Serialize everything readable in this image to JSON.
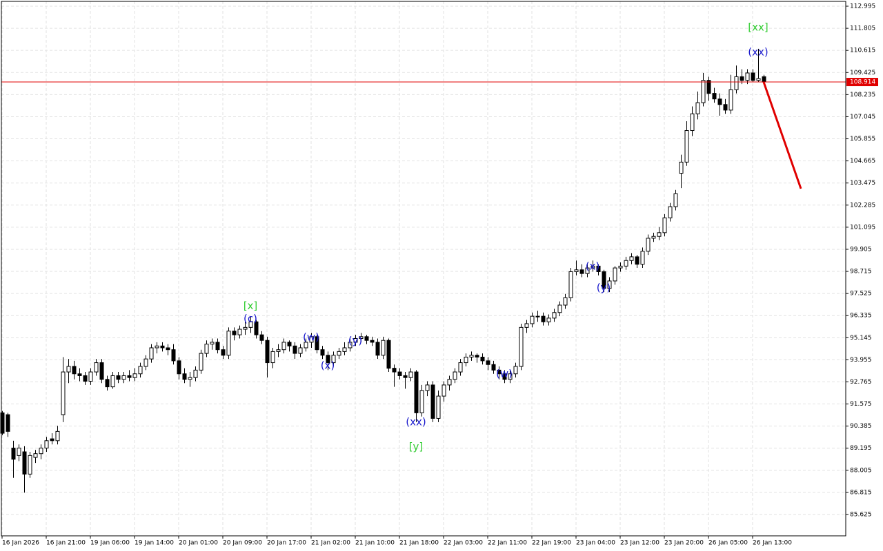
{
  "chart_data": {
    "type": "candlestick",
    "up_color": "#ffffff",
    "down_color": "#000000",
    "wick_color": "#000000",
    "grid": true,
    "ylim": [
      84.475,
      113.255
    ],
    "yticks": [
      112.995,
      111.805,
      110.615,
      109.425,
      108.235,
      107.045,
      105.855,
      104.665,
      103.475,
      102.285,
      101.095,
      99.905,
      98.715,
      97.525,
      96.335,
      95.145,
      93.955,
      92.765,
      91.575,
      90.385,
      89.195,
      88.005,
      86.815,
      85.625
    ],
    "categories": [
      "16 Jan 2026",
      null,
      null,
      null,
      null,
      null,
      null,
      null,
      "16 Jan 21:00",
      null,
      null,
      null,
      null,
      null,
      null,
      null,
      "19 Jan 06:00",
      null,
      null,
      null,
      null,
      null,
      null,
      null,
      "19 Jan 14:00",
      null,
      null,
      null,
      null,
      null,
      null,
      null,
      "20 Jan 01:00",
      null,
      null,
      null,
      null,
      null,
      null,
      null,
      "20 Jan 09:00",
      null,
      null,
      null,
      null,
      null,
      null,
      null,
      "20 Jan 17:00",
      null,
      null,
      null,
      null,
      null,
      null,
      null,
      "21 Jan 02:00",
      null,
      null,
      null,
      null,
      null,
      null,
      null,
      "21 Jan 10:00",
      null,
      null,
      null,
      null,
      null,
      null,
      null,
      "21 Jan 18:00",
      null,
      null,
      null,
      null,
      null,
      null,
      null,
      "22 Jan 03:00",
      null,
      null,
      null,
      null,
      null,
      null,
      null,
      "22 Jan 11:00",
      null,
      null,
      null,
      null,
      null,
      null,
      null,
      "22 Jan 19:00",
      null,
      null,
      null,
      null,
      null,
      null,
      null,
      "23 Jan 04:00",
      null,
      null,
      null,
      null,
      null,
      null,
      null,
      "23 Jan 12:00",
      null,
      null,
      null,
      null,
      null,
      null,
      null,
      "23 Jan 20:00",
      null,
      null,
      null,
      null,
      null,
      null,
      null,
      "26 Jan 05:00",
      null,
      null,
      null,
      null,
      null,
      null,
      null,
      "26 Jan 13:00",
      null,
      null
    ],
    "candles": [
      [
        91.1,
        91.2,
        89.9,
        90.0
      ],
      [
        91.0,
        91.1,
        89.8,
        90.1
      ],
      [
        89.2,
        89.6,
        87.6,
        88.6
      ],
      [
        88.8,
        89.4,
        88.5,
        89.2
      ],
      [
        89.0,
        89.3,
        86.8,
        87.8
      ],
      [
        87.8,
        89.0,
        87.6,
        88.8
      ],
      [
        88.7,
        89.1,
        88.4,
        88.9
      ],
      [
        88.9,
        89.4,
        88.6,
        89.2
      ],
      [
        89.2,
        89.8,
        89.0,
        89.6
      ],
      [
        89.7,
        90.0,
        89.4,
        89.6
      ],
      [
        89.6,
        90.4,
        89.4,
        90.1
      ],
      [
        91.0,
        94.1,
        90.6,
        93.3
      ],
      [
        93.3,
        94.0,
        92.7,
        93.6
      ],
      [
        93.6,
        93.9,
        92.9,
        93.2
      ],
      [
        93.2,
        93.5,
        92.8,
        93.1
      ],
      [
        93.1,
        93.3,
        92.6,
        92.8
      ],
      [
        92.8,
        93.5,
        92.6,
        93.3
      ],
      [
        93.3,
        94.0,
        93.1,
        93.8
      ],
      [
        93.8,
        94.0,
        92.7,
        92.9
      ],
      [
        92.9,
        93.1,
        92.3,
        92.5
      ],
      [
        92.5,
        93.3,
        92.4,
        93.1
      ],
      [
        93.1,
        93.3,
        92.7,
        92.9
      ],
      [
        92.9,
        93.3,
        92.7,
        93.1
      ],
      [
        93.1,
        93.4,
        92.8,
        93.0
      ],
      [
        93.0,
        93.5,
        92.8,
        93.2
      ],
      [
        93.2,
        93.8,
        93.0,
        93.6
      ],
      [
        93.6,
        94.2,
        93.4,
        94.0
      ],
      [
        94.0,
        94.8,
        93.8,
        94.6
      ],
      [
        94.6,
        94.9,
        94.3,
        94.7
      ],
      [
        94.7,
        94.9,
        94.4,
        94.6
      ],
      [
        94.6,
        94.8,
        94.2,
        94.5
      ],
      [
        94.5,
        94.8,
        93.7,
        93.9
      ],
      [
        93.9,
        94.1,
        92.9,
        93.2
      ],
      [
        93.2,
        93.5,
        92.7,
        92.9
      ],
      [
        92.9,
        93.3,
        92.5,
        93.0
      ],
      [
        93.0,
        93.6,
        92.8,
        93.4
      ],
      [
        93.4,
        94.5,
        93.2,
        94.3
      ],
      [
        94.3,
        95.0,
        94.1,
        94.8
      ],
      [
        94.8,
        95.1,
        94.5,
        94.9
      ],
      [
        94.9,
        95.1,
        94.3,
        94.5
      ],
      [
        94.5,
        94.7,
        94.0,
        94.2
      ],
      [
        94.2,
        95.7,
        94.0,
        95.5
      ],
      [
        95.5,
        95.7,
        95.0,
        95.3
      ],
      [
        95.3,
        95.8,
        95.1,
        95.6
      ],
      [
        95.6,
        96.0,
        95.3,
        95.7
      ],
      [
        95.7,
        96.3,
        95.4,
        96.0
      ],
      [
        96.0,
        96.1,
        95.1,
        95.3
      ],
      [
        95.3,
        95.5,
        94.8,
        95.0
      ],
      [
        95.0,
        95.2,
        93.0,
        93.8
      ],
      [
        93.8,
        94.6,
        93.5,
        94.4
      ],
      [
        94.4,
        94.8,
        94.1,
        94.5
      ],
      [
        94.5,
        95.1,
        94.3,
        94.9
      ],
      [
        94.9,
        95.0,
        94.4,
        94.7
      ],
      [
        94.7,
        94.9,
        94.0,
        94.3
      ],
      [
        94.3,
        94.8,
        94.1,
        94.6
      ],
      [
        94.6,
        95.1,
        94.4,
        94.9
      ],
      [
        94.9,
        95.4,
        94.6,
        95.2
      ],
      [
        95.2,
        95.3,
        94.3,
        94.5
      ],
      [
        94.5,
        94.7,
        94.0,
        94.2
      ],
      [
        94.2,
        94.4,
        93.4,
        93.8
      ],
      [
        93.8,
        94.4,
        93.6,
        94.2
      ],
      [
        94.2,
        94.6,
        94.0,
        94.4
      ],
      [
        94.4,
        94.9,
        94.2,
        94.6
      ],
      [
        94.6,
        95.1,
        94.4,
        94.9
      ],
      [
        94.9,
        95.3,
        94.7,
        95.1
      ],
      [
        95.1,
        95.4,
        94.9,
        95.2
      ],
      [
        95.2,
        95.3,
        94.8,
        95.0
      ],
      [
        95.0,
        95.2,
        94.7,
        94.9
      ],
      [
        94.9,
        95.1,
        94.0,
        94.2
      ],
      [
        94.2,
        95.2,
        94.0,
        95.0
      ],
      [
        95.0,
        95.1,
        93.3,
        93.5
      ],
      [
        93.5,
        93.7,
        92.5,
        93.3
      ],
      [
        93.3,
        93.5,
        92.9,
        93.1
      ],
      [
        93.1,
        93.3,
        92.4,
        93.0
      ],
      [
        93.0,
        93.5,
        92.8,
        93.3
      ],
      [
        93.3,
        93.4,
        90.6,
        91.1
      ],
      [
        91.1,
        92.6,
        90.9,
        92.3
      ],
      [
        92.3,
        92.8,
        92.0,
        92.6
      ],
      [
        92.6,
        92.8,
        90.6,
        90.8
      ],
      [
        90.8,
        92.3,
        90.6,
        92.0
      ],
      [
        92.0,
        92.8,
        91.7,
        92.6
      ],
      [
        92.6,
        93.1,
        92.3,
        92.9
      ],
      [
        92.9,
        93.5,
        92.7,
        93.3
      ],
      [
        93.3,
        94.0,
        93.1,
        93.8
      ],
      [
        93.8,
        94.3,
        93.6,
        94.1
      ],
      [
        94.1,
        94.4,
        93.9,
        94.2
      ],
      [
        94.2,
        94.3,
        93.8,
        94.1
      ],
      [
        94.1,
        94.3,
        93.7,
        93.9
      ],
      [
        93.9,
        94.1,
        93.4,
        93.7
      ],
      [
        93.7,
        93.9,
        93.2,
        93.4
      ],
      [
        93.4,
        93.6,
        92.9,
        93.2
      ],
      [
        93.2,
        93.4,
        92.7,
        92.9
      ],
      [
        92.9,
        93.4,
        92.7,
        93.2
      ],
      [
        93.2,
        93.8,
        93.0,
        93.6
      ],
      [
        93.6,
        95.9,
        93.4,
        95.7
      ],
      [
        95.7,
        96.1,
        95.4,
        95.9
      ],
      [
        95.9,
        96.5,
        95.7,
        96.3
      ],
      [
        96.3,
        96.6,
        96.0,
        96.3
      ],
      [
        96.3,
        96.5,
        95.8,
        96.0
      ],
      [
        96.0,
        96.4,
        95.8,
        96.2
      ],
      [
        96.2,
        96.7,
        96.0,
        96.5
      ],
      [
        96.5,
        97.1,
        96.3,
        96.9
      ],
      [
        96.9,
        97.5,
        96.7,
        97.3
      ],
      [
        97.3,
        98.9,
        97.1,
        98.7
      ],
      [
        98.7,
        99.3,
        98.5,
        98.8
      ],
      [
        98.8,
        99.1,
        98.4,
        98.6
      ],
      [
        98.6,
        99.1,
        98.4,
        98.9
      ],
      [
        98.9,
        99.3,
        98.7,
        99.0
      ],
      [
        99.0,
        99.1,
        98.5,
        98.7
      ],
      [
        98.7,
        98.8,
        97.6,
        97.8
      ],
      [
        97.8,
        98.4,
        97.6,
        98.2
      ],
      [
        98.2,
        99.0,
        98.0,
        98.9
      ],
      [
        98.9,
        99.2,
        98.7,
        99.0
      ],
      [
        99.0,
        99.5,
        98.8,
        99.3
      ],
      [
        99.3,
        99.7,
        99.1,
        99.5
      ],
      [
        99.5,
        99.6,
        98.9,
        99.1
      ],
      [
        99.1,
        100.0,
        98.9,
        99.8
      ],
      [
        99.8,
        100.7,
        99.6,
        100.5
      ],
      [
        100.5,
        100.8,
        100.3,
        100.6
      ],
      [
        100.6,
        101.1,
        100.4,
        100.8
      ],
      [
        100.8,
        101.8,
        100.6,
        101.6
      ],
      [
        101.6,
        102.4,
        101.4,
        102.2
      ],
      [
        102.2,
        103.1,
        102.0,
        102.9
      ],
      [
        104.0,
        105.0,
        103.2,
        104.6
      ],
      [
        104.6,
        106.8,
        104.4,
        106.3
      ],
      [
        106.3,
        107.6,
        106.0,
        107.2
      ],
      [
        107.2,
        108.4,
        106.9,
        107.8
      ],
      [
        107.8,
        109.4,
        107.6,
        109.0
      ],
      [
        109.0,
        109.2,
        107.9,
        108.3
      ],
      [
        108.3,
        108.6,
        107.8,
        108.0
      ],
      [
        108.0,
        108.3,
        107.1,
        107.7
      ],
      [
        107.7,
        108.0,
        107.2,
        107.4
      ],
      [
        107.4,
        109.3,
        107.2,
        108.5
      ],
      [
        108.5,
        109.8,
        108.3,
        109.2
      ],
      [
        109.2,
        109.6,
        108.8,
        109.0
      ],
      [
        109.0,
        109.6,
        108.8,
        109.4
      ],
      [
        109.4,
        109.6,
        108.9,
        109.0
      ],
      [
        109.0,
        110.7,
        108.9,
        109.1
      ],
      [
        109.2,
        109.3,
        108.8,
        108.914
      ]
    ],
    "last_price": 108.914,
    "last_price_color": "#e00000",
    "forecast": {
      "color": "#e00000",
      "x": [
        138,
        144.75
      ],
      "values": [
        108.914,
        103.17
      ]
    },
    "annotations": [
      {
        "text": "[x]",
        "color": "#32cd32",
        "x": 45,
        "y": 96.85
      },
      {
        "text": "(c)",
        "color": "#1a1acd",
        "x": 45,
        "y": 96.15
      },
      {
        "text": "(w)",
        "color": "#1a1acd",
        "x": 56,
        "y": 95.15
      },
      {
        "text": "(x)",
        "color": "#1a1acd",
        "x": 59,
        "y": 93.63
      },
      {
        "text": "(y)",
        "color": "#1a1acd",
        "x": 64,
        "y": 94.97
      },
      {
        "text": "(xx)",
        "color": "#1a1acd",
        "x": 75,
        "y": 90.59
      },
      {
        "text": "[y]",
        "color": "#32cd32",
        "x": 75,
        "y": 89.26
      },
      {
        "text": "(w)",
        "color": "#1a1acd",
        "x": 91,
        "y": 93.19
      },
      {
        "text": "(x)",
        "color": "#1a1acd",
        "x": 107,
        "y": 98.97
      },
      {
        "text": "(y)",
        "color": "#1a1acd",
        "x": 109,
        "y": 97.82
      },
      {
        "text": "(xx)",
        "color": "#1a1acd",
        "x": 137,
        "y": 110.51
      },
      {
        "text": "[xx]",
        "color": "#32cd32",
        "x": 137,
        "y": 111.85
      }
    ]
  }
}
